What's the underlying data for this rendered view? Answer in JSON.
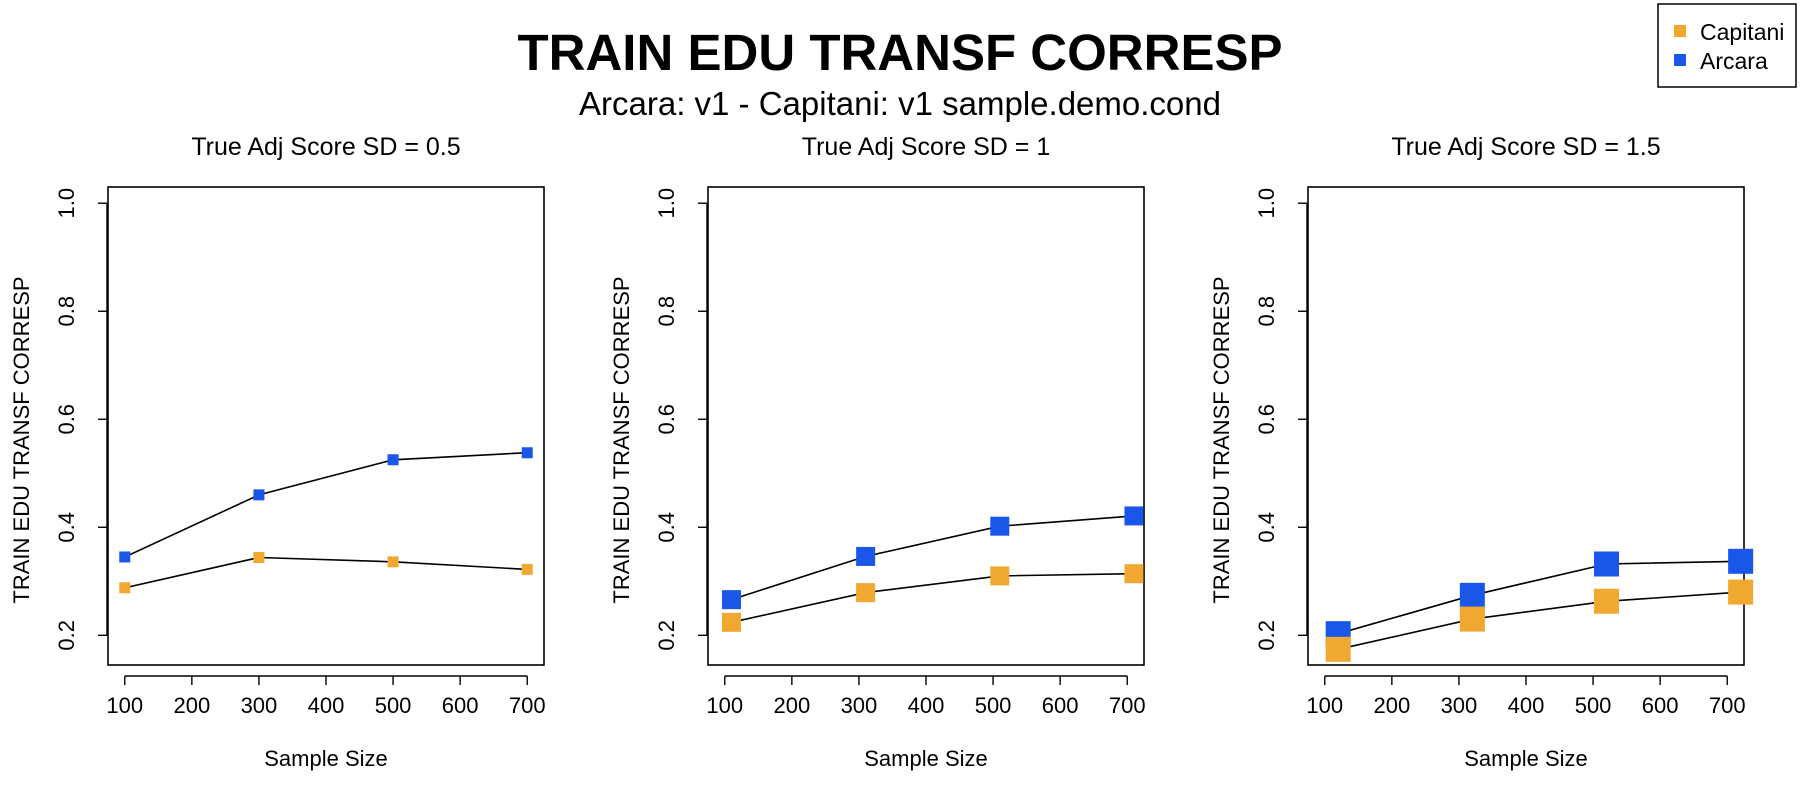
{
  "figure": {
    "title": "TRAIN EDU TRANSF CORRESP",
    "subtitle": "Arcara: v1 - Capitani: v1 sample.demo.cond"
  },
  "legend": {
    "placement": "top-right",
    "entries": [
      {
        "name": "Capitani",
        "color": "#F0A830"
      },
      {
        "name": "Arcara",
        "color": "#1A56E8"
      }
    ]
  },
  "chart_data": [
    {
      "type": "line",
      "title": "True Adj Score SD = 0.5",
      "xlabel": "Sample Size",
      "ylabel": "TRAIN EDU TRANSF CORRESP",
      "xlim": [
        75,
        725
      ],
      "ylim": [
        0.145,
        1.03
      ],
      "xticks": [
        100,
        200,
        300,
        400,
        500,
        600,
        700
      ],
      "yticks": [
        0.2,
        0.4,
        0.6,
        0.8,
        1.0
      ],
      "ytick_labels": [
        "0.2",
        "0.4",
        "0.6",
        "0.8",
        "1.0"
      ],
      "grid": false,
      "marker": "square",
      "marker_size": "small",
      "series": [
        {
          "name": "Arcara",
          "color": "#1A56E8",
          "x": [
            100,
            300,
            500,
            700
          ],
          "y": [
            0.345,
            0.46,
            0.525,
            0.538
          ]
        },
        {
          "name": "Capitani",
          "color": "#F0A830",
          "x": [
            100,
            300,
            500,
            700
          ],
          "y": [
            0.288,
            0.344,
            0.336,
            0.322
          ]
        }
      ]
    },
    {
      "type": "line",
      "title": "True Adj Score SD = 1",
      "xlabel": "Sample Size",
      "ylabel": "TRAIN EDU TRANSF CORRESP",
      "xlim": [
        75,
        725
      ],
      "ylim": [
        0.145,
        1.03
      ],
      "xticks": [
        100,
        200,
        300,
        400,
        500,
        600,
        700
      ],
      "yticks": [
        0.2,
        0.4,
        0.6,
        0.8,
        1.0
      ],
      "ytick_labels": [
        "0.2",
        "0.4",
        "0.6",
        "0.8",
        "1.0"
      ],
      "grid": false,
      "marker": "square",
      "marker_size": "medium",
      "series": [
        {
          "name": "Arcara",
          "color": "#1A56E8",
          "x": [
            110,
            310,
            510,
            710
          ],
          "y": [
            0.266,
            0.346,
            0.402,
            0.421
          ]
        },
        {
          "name": "Capitani",
          "color": "#F0A830",
          "x": [
            110,
            310,
            510,
            710
          ],
          "y": [
            0.224,
            0.279,
            0.31,
            0.314
          ]
        }
      ]
    },
    {
      "type": "line",
      "title": "True Adj Score SD = 1.5",
      "xlabel": "Sample Size",
      "ylabel": "TRAIN EDU TRANSF CORRESP",
      "xlim": [
        75,
        725
      ],
      "ylim": [
        0.145,
        1.03
      ],
      "xticks": [
        100,
        200,
        300,
        400,
        500,
        600,
        700
      ],
      "yticks": [
        0.2,
        0.4,
        0.6,
        0.8,
        1.0
      ],
      "ytick_labels": [
        "0.2",
        "0.4",
        "0.6",
        "0.8",
        "1.0"
      ],
      "grid": false,
      "marker": "square",
      "marker_size": "large",
      "series": [
        {
          "name": "Arcara",
          "color": "#1A56E8",
          "x": [
            120,
            320,
            520,
            720
          ],
          "y": [
            0.203,
            0.274,
            0.332,
            0.337
          ]
        },
        {
          "name": "Capitani",
          "color": "#F0A830",
          "x": [
            120,
            320,
            520,
            720
          ],
          "y": [
            0.174,
            0.23,
            0.263,
            0.28
          ]
        }
      ]
    }
  ]
}
